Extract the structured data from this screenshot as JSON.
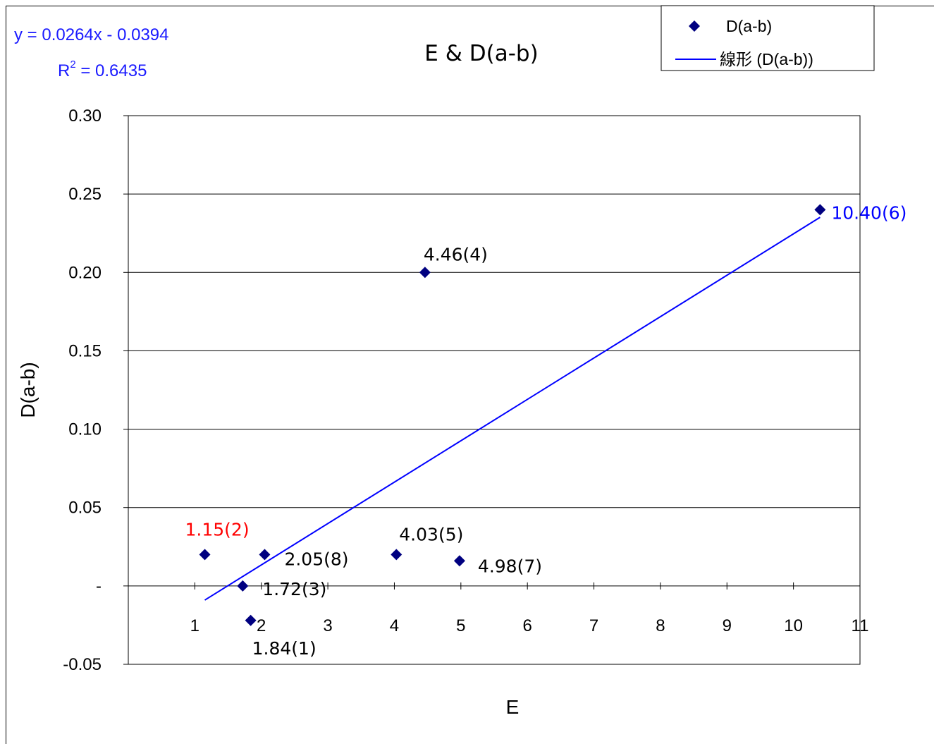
{
  "chart_data": {
    "type": "scatter",
    "title": "E & D(a-b)",
    "xlabel": "E",
    "ylabel": "D(a-b)",
    "xlim": [
      0,
      11
    ],
    "ylim": [
      -0.05,
      0.3
    ],
    "x_ticks": [
      "",
      "1",
      "2",
      "3",
      "4",
      "5",
      "6",
      "7",
      "8",
      "9",
      "10",
      "11"
    ],
    "y_ticks": [
      "-0.05",
      "-",
      "0.05",
      "0.10",
      "0.15",
      "0.20",
      "0.25",
      "0.30"
    ],
    "grid": "horizontal",
    "series": [
      {
        "name": "D(a-b)",
        "color": "#000080",
        "marker": "diamond",
        "points": [
          {
            "x": 1.15,
            "y": 0.02,
            "label": "1.15(2)",
            "label_color": "#ff0000"
          },
          {
            "x": 1.72,
            "y": 0.0,
            "label": "1.72(3)",
            "label_color": "#000000"
          },
          {
            "x": 1.84,
            "y": -0.022,
            "label": "1.84(1)",
            "label_color": "#000000"
          },
          {
            "x": 2.05,
            "y": 0.02,
            "label": "2.05(8)",
            "label_color": "#000000"
          },
          {
            "x": 4.03,
            "y": 0.02,
            "label": "4.03(5)",
            "label_color": "#000000"
          },
          {
            "x": 4.46,
            "y": 0.2,
            "label": "4.46(4)",
            "label_color": "#000000"
          },
          {
            "x": 4.98,
            "y": 0.016,
            "label": "4.98(7)",
            "label_color": "#000000"
          },
          {
            "x": 10.4,
            "y": 0.24,
            "label": "10.40(6)",
            "label_color": "#0000ff"
          }
        ]
      }
    ],
    "trendline": {
      "name": "線形 (D(a-b))",
      "color": "#0000ff",
      "slope": 0.0264,
      "intercept": -0.0394,
      "x_range": [
        1.15,
        10.4
      ],
      "equation": "y = 0.0264x  - 0.0394",
      "r2_prefix": "R",
      "r2_exp": "2",
      "r2_value": " = 0.6435"
    },
    "legend": {
      "placement": "top-right",
      "entries": [
        "D(a-b)",
        "線形 (D(a-b))"
      ]
    }
  }
}
